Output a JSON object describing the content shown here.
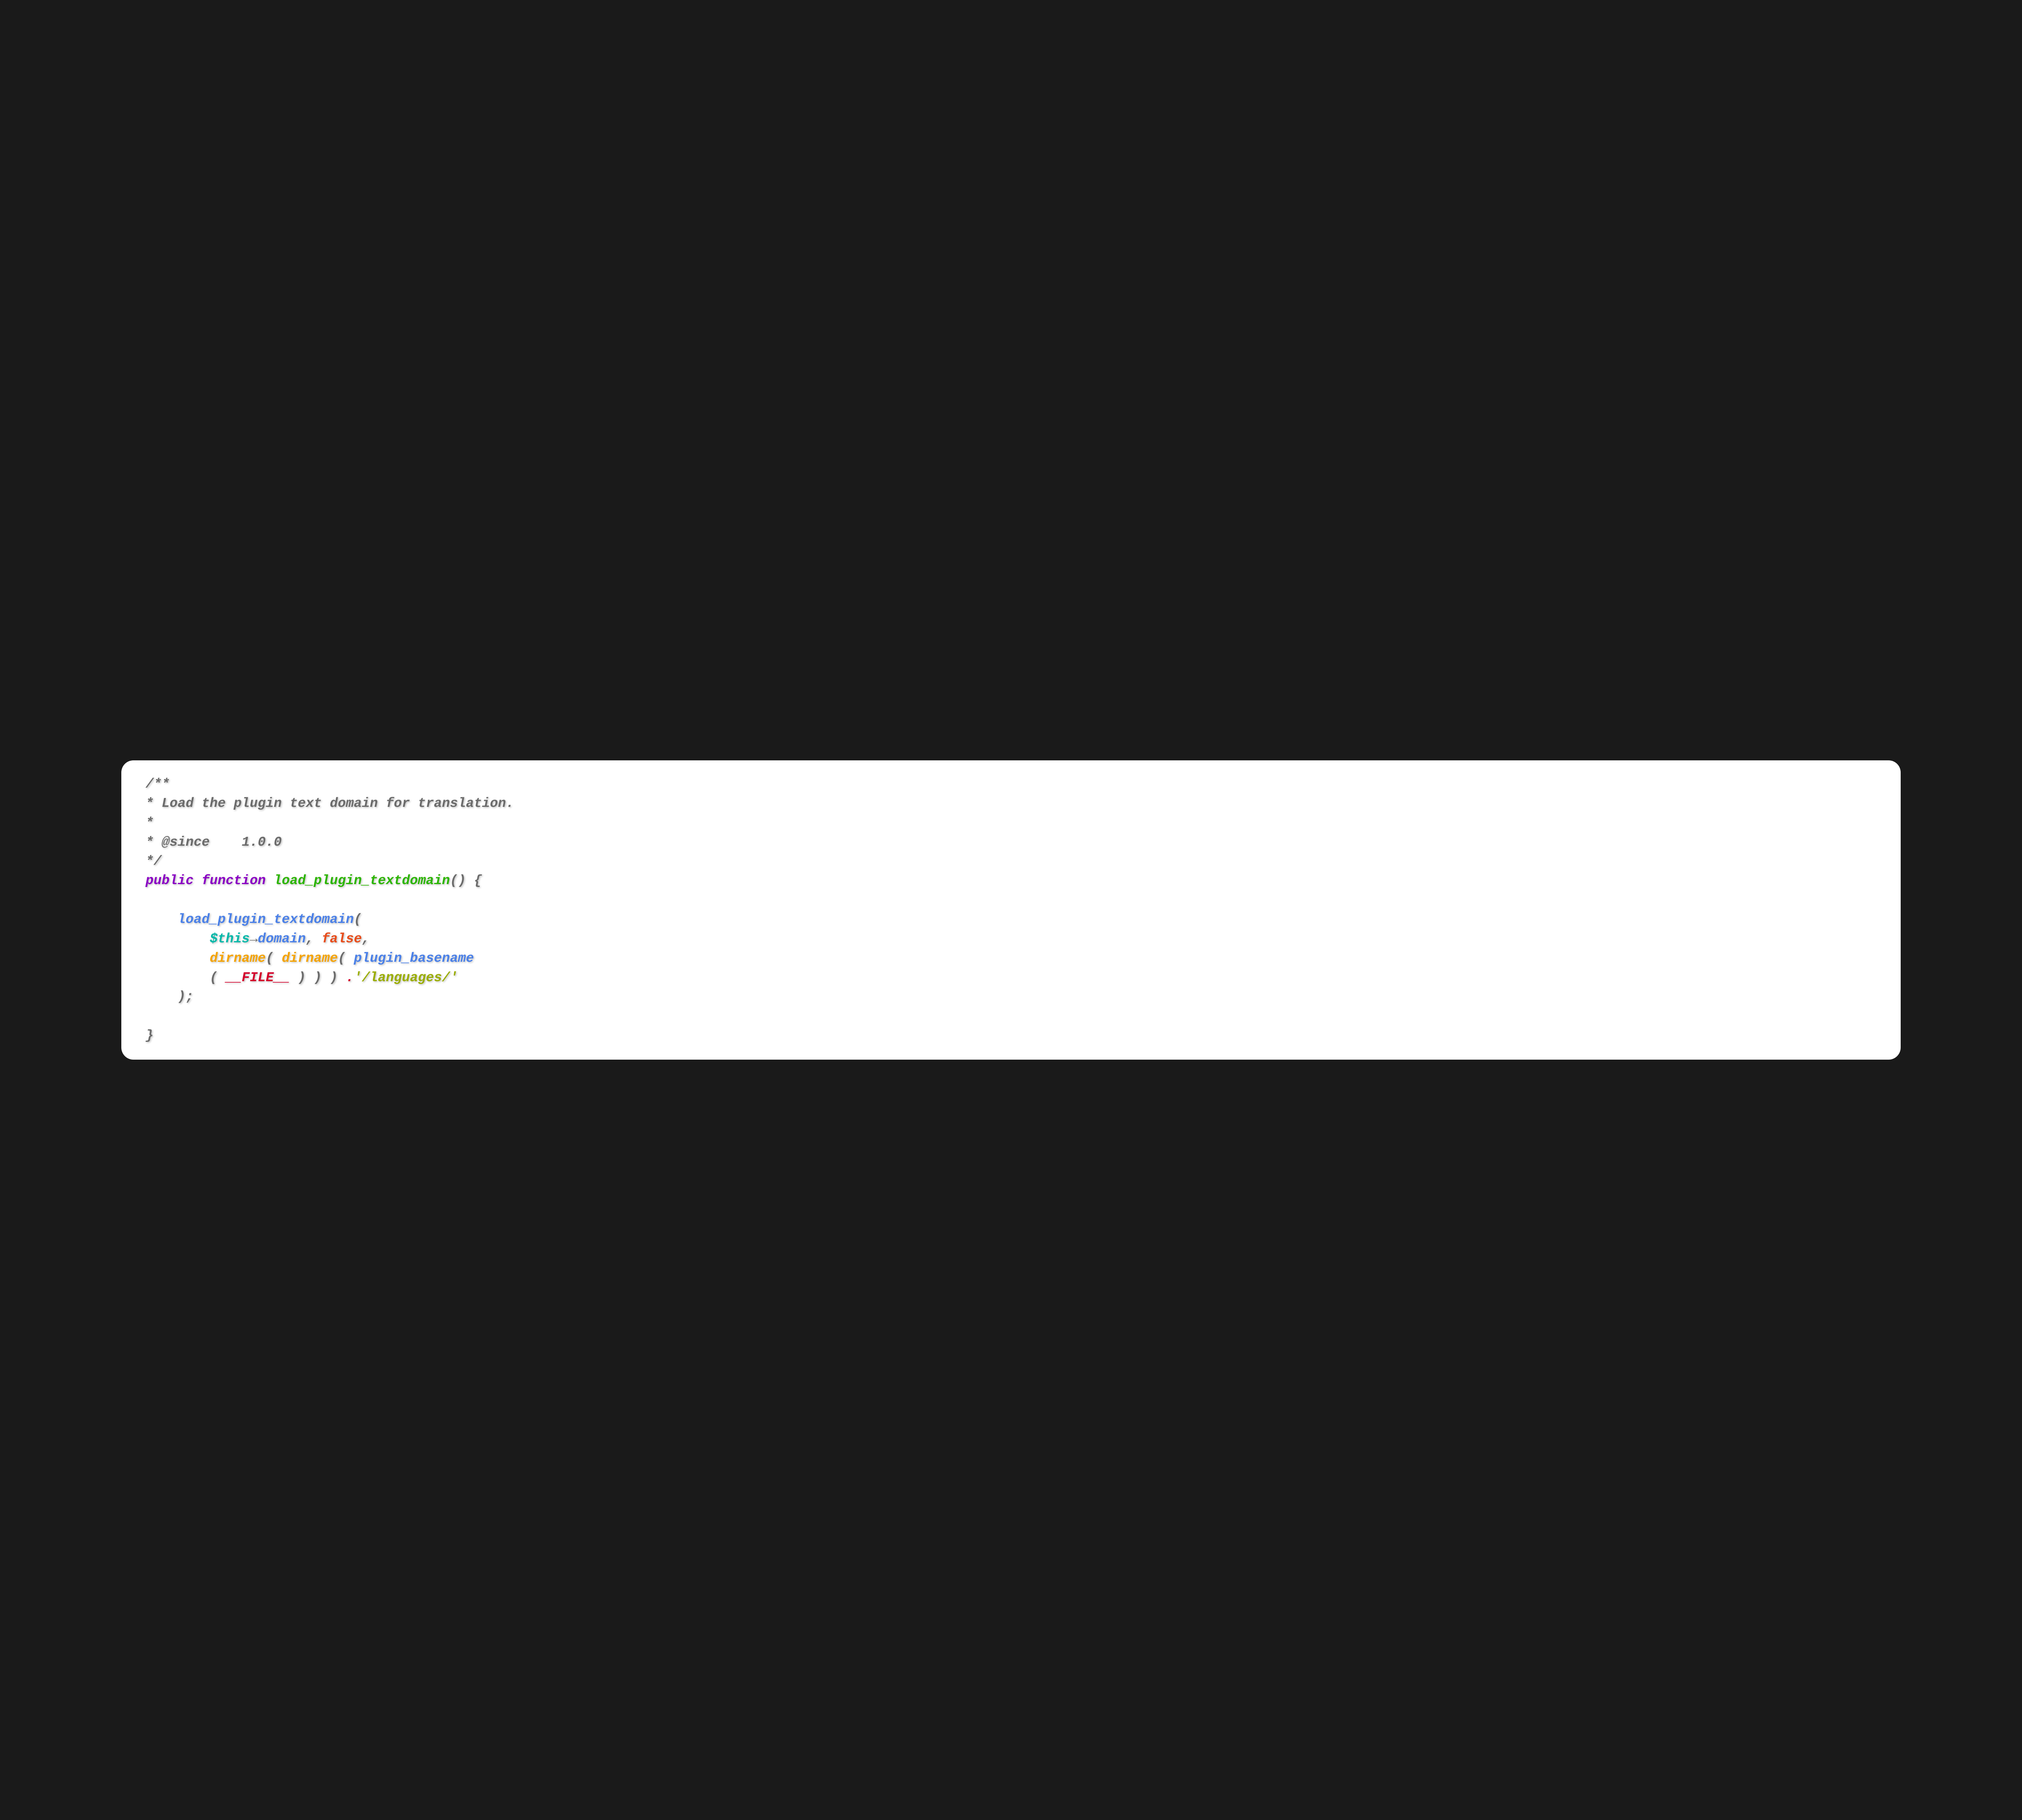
{
  "code": {
    "type": "code-snippet",
    "language": "php",
    "background_color": "#1a1a1a",
    "panel_color": "#ffffff",
    "panel_border_radius": 30,
    "font_family": "monospace",
    "font_weight": 700,
    "font_style": "italic",
    "font_size_pt": 25,
    "line_height": 1.45,
    "text_shadow": "2px 2px 4px rgba(0,0,0,0.25)",
    "colors": {
      "comment": "#6b6b6b",
      "keyword": "#8a00c4",
      "funcdef": "#2bb500",
      "call_blue": "#4a80e8",
      "call_orange": "#f5a300",
      "variable": "#00b8a9",
      "property": "#4a80e8",
      "false": "#e84c1a",
      "magic": "#d4002a",
      "string": "#9aad00",
      "punct": "#6b6b6b",
      "dot": "#d4002a"
    },
    "tokens": {
      "c1": "/**",
      "c2": "* Load the plugin text domain for translation.",
      "c3": "*",
      "c4": "* @since    1.0.0",
      "c5": "*/",
      "kw_public": "public",
      "kw_function": "function",
      "fn_name": "load_plugin_textdomain",
      "paren_open": "()",
      "brace_open": "{",
      "call_load": "load_plugin_textdomain",
      "paren1": "(",
      "var_this": "$this",
      "arrow": "→",
      "prop_domain": "domain",
      "comma1": ",",
      "false": "false",
      "comma2": ",",
      "dirname1": "dirname",
      "paren2": "(",
      "dirname2": "dirname",
      "paren3": "(",
      "plugin_basename": "plugin_basename",
      "paren4": "(",
      "magic_file": "__FILE__",
      "close_parens": ") ) )",
      "dot": ".",
      "string_lang": "'/languages/'",
      "close_call": ");",
      "brace_close": "}"
    }
  }
}
